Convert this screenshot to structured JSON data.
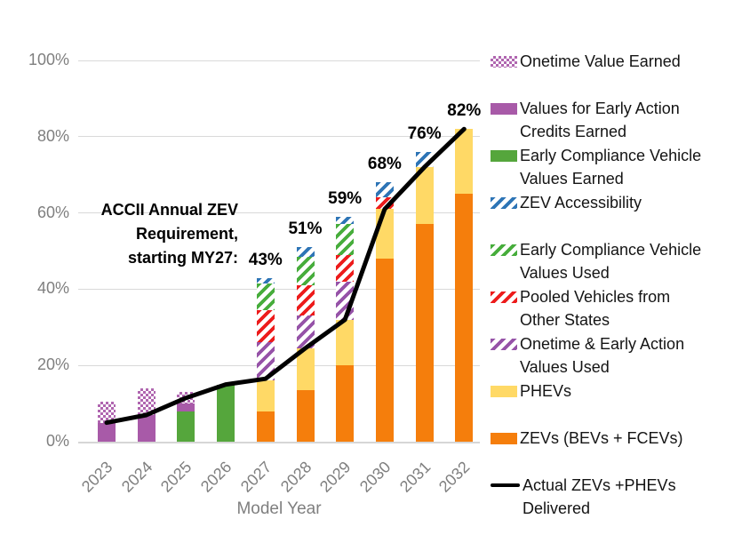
{
  "chart_data": {
    "type": "bar",
    "subtype": "stacked-bars-with-line",
    "title": "",
    "xlabel": "Model Year",
    "ylabel": "",
    "ylim": [
      0,
      100
    ],
    "ytick_labels": [
      "0%",
      "20%",
      "40%",
      "60%",
      "80%",
      "100%"
    ],
    "grid": "horizontal",
    "legend_position": "right",
    "categories": [
      "2023",
      "2024",
      "2025",
      "2026",
      "2027",
      "2028",
      "2029",
      "2030",
      "2031",
      "2032"
    ],
    "total_labels": [
      "",
      "",
      "",
      "",
      "43%",
      "51%",
      "59%",
      "68%",
      "76%",
      "82%"
    ],
    "series": [
      {
        "name": "Early Compliance Vehicle Values Earned",
        "pattern": "solid",
        "color": "#55A63C",
        "values": [
          0,
          0,
          8,
          15,
          0,
          0,
          0,
          0,
          0,
          0
        ]
      },
      {
        "name": "Values for Early Action Credits Earned",
        "pattern": "solid",
        "color": "#A85AA8",
        "values": [
          5,
          7,
          2,
          0,
          0,
          0,
          0,
          0,
          0,
          0
        ]
      },
      {
        "name": "Onetime Value Earned",
        "pattern": "checker",
        "color": "#B066B0",
        "values": [
          5.5,
          7,
          3,
          0,
          0,
          0,
          0,
          0,
          0,
          0
        ]
      },
      {
        "name": "ZEVs (BEVs + FCEVs)",
        "pattern": "solid",
        "color": "#F57E0C",
        "values": [
          0,
          0,
          0,
          0,
          8,
          13.5,
          20,
          48,
          57,
          65
        ]
      },
      {
        "name": "PHEVs",
        "pattern": "solid",
        "color": "#FFD966",
        "values": [
          0,
          0,
          0,
          0,
          8,
          11,
          12,
          13,
          15,
          17
        ]
      },
      {
        "name": "Onetime & Early Action Values Used",
        "pattern": "hatch",
        "color": "#9653A8",
        "values": [
          0,
          0,
          0,
          0,
          10,
          8.5,
          10,
          0,
          0,
          0
        ]
      },
      {
        "name": "Pooled Vehicles from Other States",
        "pattern": "hatch",
        "color": "#ED1C1C",
        "values": [
          0,
          0,
          0,
          0,
          8.5,
          8,
          7,
          3,
          0,
          0
        ]
      },
      {
        "name": "Early Compliance Vehicle Values Used",
        "pattern": "hatch",
        "color": "#47AD3C",
        "values": [
          0,
          0,
          0,
          0,
          7,
          7.5,
          8,
          0,
          0,
          0
        ]
      },
      {
        "name": "ZEV Accessibility",
        "pattern": "hatch",
        "color": "#2E75B6",
        "values": [
          0,
          0,
          0,
          0,
          1.5,
          2.5,
          2,
          4,
          4,
          0
        ]
      }
    ],
    "line_series": {
      "name": "Actual ZEVs +PHEVs Delivered",
      "color": "#000000",
      "values": [
        5,
        7,
        11.5,
        15,
        16.5,
        24.5,
        32,
        61,
        72,
        82
      ]
    }
  },
  "annotation": {
    "lines": [
      "ACCII Annual ZEV",
      "Requirement,",
      "starting MY27:"
    ]
  },
  "xaxis_title": "Model Year",
  "legend": [
    {
      "lines": [
        "Onetime Value Earned"
      ],
      "swatch": "checker",
      "color": "#B066B0"
    },
    {
      "lines": [
        "Values for Early Action",
        "Credits Earned"
      ],
      "swatch": "solid",
      "color": "#A85AA8"
    },
    {
      "lines": [
        "Early Compliance Vehicle",
        "Values Earned"
      ],
      "swatch": "solid",
      "color": "#55A63C"
    },
    {
      "lines": [
        "ZEV Accessibility"
      ],
      "swatch": "hatch",
      "color": "#2E75B6"
    },
    {
      "lines": [
        "Early Compliance Vehicle",
        "Values Used"
      ],
      "swatch": "hatch",
      "color": "#47AD3C"
    },
    {
      "lines": [
        "Pooled Vehicles from",
        "Other States"
      ],
      "swatch": "hatch",
      "color": "#ED1C1C"
    },
    {
      "lines": [
        "Onetime & Early Action",
        "Values Used"
      ],
      "swatch": "hatch",
      "color": "#9653A8"
    },
    {
      "lines": [
        "PHEVs"
      ],
      "swatch": "solid",
      "color": "#FFD966"
    },
    {
      "lines": [
        "ZEVs (BEVs + FCEVs)"
      ],
      "swatch": "solid",
      "color": "#F57E0C"
    },
    {
      "lines": [
        "Actual ZEVs +PHEVs",
        "Delivered"
      ],
      "swatch": "line",
      "color": "#000000"
    }
  ],
  "colors": {
    "grid": "#D9D9D9",
    "axis_text": "#7F7F7F",
    "label_text": "#000000"
  }
}
